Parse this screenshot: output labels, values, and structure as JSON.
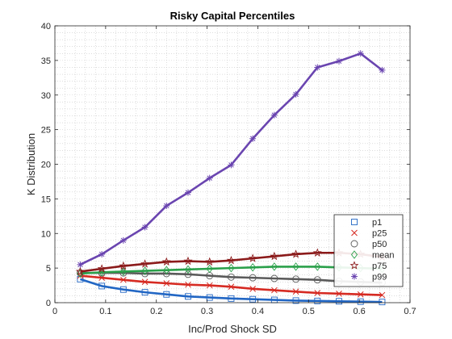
{
  "chart_data": {
    "type": "line",
    "title": "Risky Capital Percentiles",
    "xlabel": "Inc/Prod Shock SD",
    "ylabel": "K Distribution",
    "xlim": [
      0,
      0.7
    ],
    "ylim": [
      0,
      40
    ],
    "x_ticks": [
      "0",
      "0.1",
      "0.2",
      "0.3",
      "0.4",
      "0.5",
      "0.6",
      "0.7"
    ],
    "y_ticks": [
      "0",
      "5",
      "10",
      "15",
      "20",
      "25",
      "30",
      "35",
      "40"
    ],
    "grid": "minor-dotted",
    "legend_position": "bottom-right",
    "x": [
      0.05,
      0.0925,
      0.135,
      0.1775,
      0.22,
      0.2625,
      0.305,
      0.3475,
      0.39,
      0.4325,
      0.475,
      0.5175,
      0.56,
      0.6025,
      0.645
    ],
    "series": [
      {
        "name": "p1",
        "color": "#2166c4",
        "marker": "square",
        "values": [
          3.4,
          2.4,
          1.9,
          1.5,
          1.2,
          0.9,
          0.75,
          0.6,
          0.5,
          0.4,
          0.3,
          0.25,
          0.2,
          0.15,
          0.1
        ]
      },
      {
        "name": "p25",
        "color": "#d62a22",
        "marker": "x",
        "values": [
          3.9,
          3.6,
          3.3,
          3.0,
          2.8,
          2.6,
          2.5,
          2.3,
          2.0,
          1.8,
          1.6,
          1.4,
          1.3,
          1.2,
          1.1
        ]
      },
      {
        "name": "p50",
        "color": "#5a5a5a",
        "marker": "circle",
        "values": [
          4.3,
          4.3,
          4.3,
          4.2,
          4.2,
          4.1,
          3.9,
          3.7,
          3.6,
          3.5,
          3.4,
          3.3,
          3.1,
          3.0,
          2.9
        ]
      },
      {
        "name": "mean",
        "color": "#2aa04a",
        "marker": "diamond",
        "values": [
          4.2,
          4.4,
          4.5,
          4.6,
          4.7,
          4.8,
          4.9,
          5.0,
          5.1,
          5.2,
          5.2,
          5.2,
          5.1,
          5.0,
          4.9
        ]
      },
      {
        "name": "p75",
        "color": "#8b1a1a",
        "marker": "star",
        "values": [
          4.5,
          4.9,
          5.3,
          5.6,
          5.9,
          6.0,
          5.9,
          6.1,
          6.4,
          6.7,
          7.0,
          7.2,
          7.2,
          7.0,
          6.6
        ]
      },
      {
        "name": "p99",
        "color": "#6a45b0",
        "marker": "asterisk",
        "values": [
          5.5,
          7.0,
          9.0,
          10.9,
          14.0,
          15.9,
          18.0,
          19.9,
          23.7,
          27.1,
          30.1,
          34.0,
          34.9,
          36.0,
          33.6
        ]
      }
    ]
  }
}
